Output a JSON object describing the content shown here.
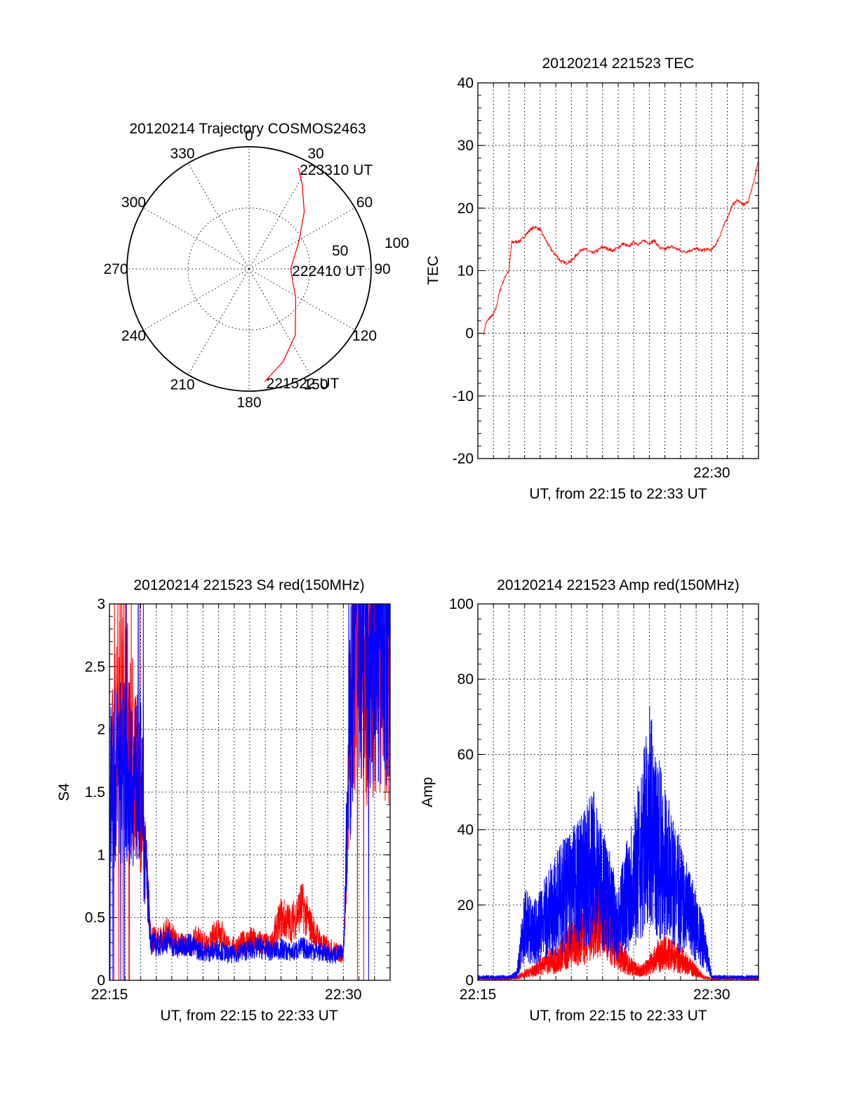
{
  "colors": {
    "red": "#ff0000",
    "blue": "#0000ff",
    "axis": "#000000"
  },
  "chart_data": [
    {
      "type": "polar",
      "title": "20120214 Trajectory COSMOS2463",
      "angle_labels": [
        "0",
        "30",
        "60",
        "90",
        "120",
        "150",
        "180",
        "210",
        "240",
        "270",
        "300",
        "330"
      ],
      "radial_labels": [
        "50",
        "100"
      ],
      "rmax": 100,
      "series": [
        {
          "color": "#ff0000",
          "points": [
            {
              "az": 172,
              "r": 93
            },
            {
              "az": 160,
              "r": 81
            },
            {
              "az": 145,
              "r": 66
            },
            {
              "az": 122,
              "r": 45
            },
            {
              "az": 90,
              "r": 34
            },
            {
              "az": 62,
              "r": 46
            },
            {
              "az": 44,
              "r": 65
            },
            {
              "az": 32,
              "r": 82
            },
            {
              "az": 26,
              "r": 92
            }
          ]
        }
      ],
      "annotations": [
        {
          "text": "223310 UT",
          "az": 26,
          "r": 92
        },
        {
          "text": "222410 UT",
          "az": 90,
          "r": 34
        },
        {
          "text": "221522 UT",
          "az": 172,
          "r": 93
        }
      ]
    },
    {
      "type": "line",
      "title": "20120214 221523 TEC",
      "xlabel": "UT, from 22:15 to 22:33 UT",
      "ylabel": "TEC",
      "xlim": [
        "22:15",
        "22:33"
      ],
      "ylim": [
        -20,
        40
      ],
      "yticks": [
        -20,
        -10,
        0,
        10,
        20,
        30,
        40
      ],
      "xticks": [
        {
          "t": "22:30",
          "label": "22:30"
        }
      ],
      "series": [
        {
          "color": "#ff0000",
          "x": [
            "22:15:23",
            "22:15:30",
            "22:15:45",
            "22:16:00",
            "22:16:10",
            "22:16:20",
            "22:16:30",
            "22:16:40",
            "22:16:50",
            "22:17:00",
            "22:17:10",
            "22:17:20",
            "22:17:40",
            "22:18:00",
            "22:18:20",
            "22:18:40",
            "22:19:00",
            "22:19:20",
            "22:19:40",
            "22:20:00",
            "22:20:20",
            "22:20:40",
            "22:21:00",
            "22:21:20",
            "22:21:40",
            "22:22:00",
            "22:22:20",
            "22:22:40",
            "22:23:00",
            "22:23:20",
            "22:23:40",
            "22:24:00",
            "22:24:20",
            "22:24:40",
            "22:25:00",
            "22:25:20",
            "22:25:40",
            "22:26:00",
            "22:26:20",
            "22:26:40",
            "22:27:00",
            "22:27:20",
            "22:27:40",
            "22:28:00",
            "22:28:20",
            "22:28:40",
            "22:29:00",
            "22:29:20",
            "22:29:40",
            "22:30:00",
            "22:30:20",
            "22:30:40",
            "22:31:00",
            "22:31:20",
            "22:31:40",
            "22:32:00",
            "22:32:20",
            "22:32:40",
            "22:33:00"
          ],
          "values": [
            0,
            1.5,
            2.5,
            3,
            4,
            6,
            7.5,
            8.5,
            9.5,
            10,
            14.5,
            14.6,
            14.7,
            15.5,
            16.5,
            17,
            16.5,
            15,
            13.5,
            12.5,
            11.5,
            11.2,
            11.6,
            12.5,
            13.5,
            13.3,
            12.8,
            13.2,
            13.8,
            13.5,
            13.2,
            13.7,
            14.3,
            13.8,
            14.6,
            14.2,
            14.8,
            14.4,
            14.8,
            13.6,
            13.4,
            13.9,
            13.6,
            13.2,
            13.0,
            13.3,
            13.5,
            13.2,
            13.4,
            13.3,
            14.5,
            16.5,
            18.5,
            20.5,
            21.3,
            20.5,
            21,
            24,
            27.5
          ]
        }
      ]
    },
    {
      "type": "line",
      "title": "20120214 221523 S4 red(150MHz)",
      "xlabel": "UT, from 22:15 to 22:33 UT",
      "ylabel": "S4",
      "xlim": [
        "22:15",
        "22:33"
      ],
      "ylim": [
        0,
        3
      ],
      "yticks": [
        0,
        0.5,
        1,
        1.5,
        2,
        2.5,
        3
      ],
      "xticks": [
        {
          "t": "22:15",
          "label": "22:15"
        },
        {
          "t": "22:30",
          "label": "22:30"
        }
      ],
      "series": [
        {
          "color": "#ff0000",
          "x": [
            "22:15:00",
            "22:15:40",
            "22:16:20",
            "22:17:00",
            "22:17:20",
            "22:17:40",
            "22:18:00",
            "22:18:40",
            "22:19:20",
            "22:20:00",
            "22:20:40",
            "22:21:20",
            "22:22:00",
            "22:22:40",
            "22:23:20",
            "22:24:00",
            "22:24:40",
            "22:25:20",
            "22:26:00",
            "22:26:40",
            "22:27:20",
            "22:28:00",
            "22:28:40",
            "22:29:20",
            "22:30:00",
            "22:30:20",
            "22:30:40",
            "22:31:00",
            "22:31:40",
            "22:32:20",
            "22:33:00"
          ],
          "values": [
            1.3,
            2.4,
            1.9,
            1.5,
            0.9,
            0.35,
            0.3,
            0.38,
            0.3,
            0.27,
            0.33,
            0.26,
            0.42,
            0.25,
            0.28,
            0.32,
            0.3,
            0.27,
            0.5,
            0.45,
            0.6,
            0.4,
            0.28,
            0.24,
            0.2,
            1.5,
            2.6,
            2.8,
            2.4,
            2.7,
            2.5
          ]
        },
        {
          "color": "#0000ff",
          "x": [
            "22:15:00",
            "22:15:40",
            "22:16:20",
            "22:17:00",
            "22:17:20",
            "22:17:40",
            "22:18:00",
            "22:18:40",
            "22:19:20",
            "22:20:00",
            "22:20:40",
            "22:21:20",
            "22:22:00",
            "22:22:40",
            "22:23:20",
            "22:24:00",
            "22:24:40",
            "22:25:20",
            "22:26:00",
            "22:26:40",
            "22:27:20",
            "22:28:00",
            "22:28:40",
            "22:29:20",
            "22:30:00",
            "22:30:20",
            "22:30:40",
            "22:31:00",
            "22:31:40",
            "22:32:20",
            "22:33:00"
          ],
          "values": [
            1.5,
            1.7,
            1.65,
            1.6,
            0.9,
            0.3,
            0.28,
            0.33,
            0.25,
            0.3,
            0.24,
            0.22,
            0.25,
            0.2,
            0.22,
            0.25,
            0.26,
            0.23,
            0.25,
            0.22,
            0.26,
            0.24,
            0.22,
            0.2,
            0.22,
            1.7,
            2.7,
            2.9,
            2.8,
            2.6,
            2.9
          ]
        }
      ]
    },
    {
      "type": "line",
      "title": "20120214 221523 Amp red(150MHz)",
      "xlabel": "UT, from 22:15 to 22:33 UT",
      "ylabel": "Amp",
      "xlim": [
        "22:15",
        "22:33"
      ],
      "ylim": [
        0,
        100
      ],
      "yticks": [
        0,
        20,
        40,
        60,
        80,
        100
      ],
      "xticks": [
        {
          "t": "22:15",
          "label": "22:15"
        },
        {
          "t": "22:30",
          "label": "22:30"
        }
      ],
      "series": [
        {
          "color": "#ff0000",
          "x": [
            "22:15:00",
            "22:16:00",
            "22:17:00",
            "22:17:30",
            "22:18:00",
            "22:18:30",
            "22:19:00",
            "22:19:30",
            "22:20:00",
            "22:20:30",
            "22:21:00",
            "22:21:30",
            "22:22:00",
            "22:22:30",
            "22:23:00",
            "22:23:30",
            "22:24:00",
            "22:24:30",
            "22:25:00",
            "22:25:30",
            "22:26:00",
            "22:26:30",
            "22:27:00",
            "22:27:30",
            "22:28:00",
            "22:28:30",
            "22:29:00",
            "22:29:30",
            "22:30:00",
            "22:31:00",
            "22:32:00",
            "22:33:00"
          ],
          "values": [
            0.5,
            0.5,
            0.5,
            1,
            2,
            3,
            5,
            6,
            7,
            9,
            12,
            14,
            15,
            18,
            20,
            15,
            10,
            6,
            4,
            3,
            5,
            8,
            9,
            8,
            7,
            5,
            3,
            1,
            0.5,
            0.5,
            0.5,
            0.5
          ]
        },
        {
          "color": "#0000ff",
          "x": [
            "22:15:00",
            "22:16:00",
            "22:17:00",
            "22:17:30",
            "22:18:00",
            "22:18:30",
            "22:19:00",
            "22:19:30",
            "22:20:00",
            "22:20:30",
            "22:21:00",
            "22:21:30",
            "22:22:00",
            "22:22:30",
            "22:23:00",
            "22:23:30",
            "22:24:00",
            "22:24:30",
            "22:25:00",
            "22:25:30",
            "22:26:00",
            "22:26:30",
            "22:27:00",
            "22:27:30",
            "22:28:00",
            "22:28:30",
            "22:29:00",
            "22:29:30",
            "22:30:00",
            "22:31:00",
            "22:32:00",
            "22:33:00"
          ],
          "values": [
            1,
            1,
            1,
            2,
            20,
            15,
            18,
            22,
            25,
            28,
            30,
            32,
            35,
            38,
            30,
            25,
            18,
            28,
            35,
            42,
            55,
            45,
            40,
            32,
            28,
            22,
            18,
            12,
            1,
            1,
            1,
            1
          ]
        }
      ]
    }
  ]
}
